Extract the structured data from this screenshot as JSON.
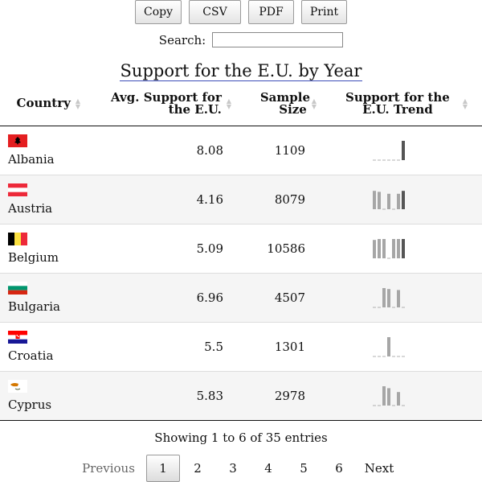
{
  "toolbar": {
    "buttons": [
      "Copy",
      "CSV",
      "PDF",
      "Print"
    ]
  },
  "search": {
    "label": "Search:",
    "value": "",
    "placeholder": ""
  },
  "table": {
    "caption": "Support for the E.U. by Year",
    "columns": [
      "Country",
      "Avg. Support for the E.U.",
      "Sample Size",
      "Support for the E.U. Trend"
    ],
    "rows": [
      {
        "country": "Albania",
        "flag": "albania-flag-icon",
        "avg": "8.08",
        "sample": "1109",
        "trend": [
          0,
          0,
          0,
          0,
          0,
          0,
          1.0
        ]
      },
      {
        "country": "Austria",
        "flag": "austria-flag-icon",
        "avg": "4.16",
        "sample": "8079",
        "trend": [
          0.95,
          0.9,
          0,
          0.8,
          0,
          0.8,
          0.95
        ]
      },
      {
        "country": "Belgium",
        "flag": "belgium-flag-icon",
        "avg": "5.09",
        "sample": "10586",
        "trend": [
          0.95,
          1.0,
          1.0,
          0,
          1.0,
          1.0,
          1.0
        ]
      },
      {
        "country": "Bulgaria",
        "flag": "bulgaria-flag-icon",
        "avg": "6.96",
        "sample": "4507",
        "trend": [
          0,
          0,
          1.0,
          0.95,
          0,
          0.9,
          0
        ]
      },
      {
        "country": "Croatia",
        "flag": "croatia-flag-icon",
        "avg": "5.5",
        "sample": "1301",
        "trend": [
          0,
          0,
          0,
          1.0,
          0,
          0,
          0
        ]
      },
      {
        "country": "Cyprus",
        "flag": "cyprus-flag-icon",
        "avg": "5.83",
        "sample": "2978",
        "trend": [
          0,
          0,
          1.0,
          0.9,
          0,
          0.7,
          0
        ]
      }
    ]
  },
  "info": "Showing 1 to 6 of 35 entries",
  "pagination": {
    "previous": "Previous",
    "pages": [
      "1",
      "2",
      "3",
      "4",
      "5",
      "6"
    ],
    "current": "1",
    "next": "Next"
  }
}
